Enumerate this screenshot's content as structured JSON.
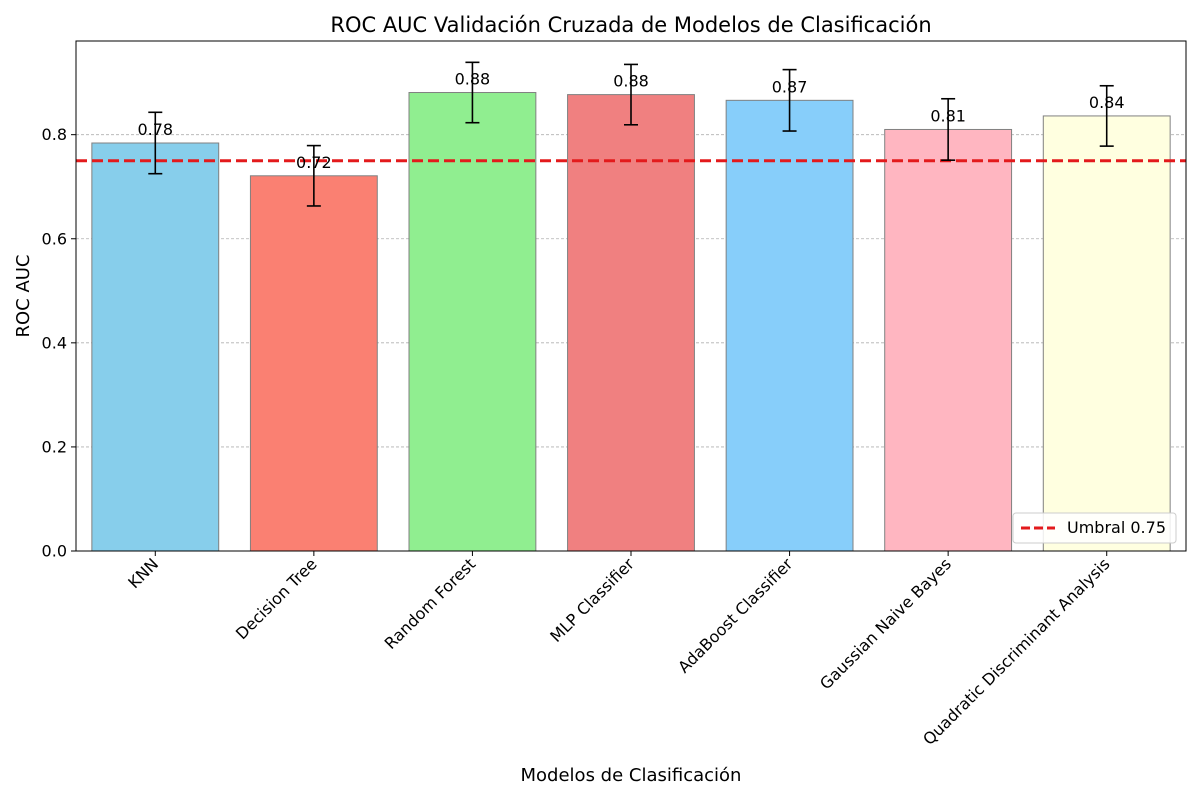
{
  "chart_data": {
    "type": "bar",
    "title": "ROC AUC Validación Cruzada de Modelos de Clasificación",
    "xlabel": "Modelos de Clasificación",
    "ylabel": "ROC AUC",
    "categories": [
      "KNN",
      "Decision Tree",
      "Random Forest",
      "MLP Classifier",
      "AdaBoost Classifier",
      "Gaussian Naive Bayes",
      "Quadratic Discriminant Analysis"
    ],
    "values": [
      0.784,
      0.721,
      0.881,
      0.877,
      0.866,
      0.81,
      0.836
    ],
    "errors": [
      0.059,
      0.058,
      0.058,
      0.058,
      0.059,
      0.059,
      0.058
    ],
    "data_labels": [
      "0.78",
      "0.72",
      "0.88",
      "0.88",
      "0.87",
      "0.81",
      "0.84"
    ],
    "bar_colors": [
      "#87ceeb",
      "#fa8072",
      "#90ee90",
      "#f08080",
      "#87cefa",
      "#ffb6c1",
      "#ffffe0"
    ],
    "bar_edge_color": "#808080",
    "ylim": [
      0,
      0.98
    ],
    "yticks": [
      0.0,
      0.2,
      0.4,
      0.6,
      0.8
    ],
    "ytick_labels": [
      "0.0",
      "0.2",
      "0.4",
      "0.6",
      "0.8"
    ],
    "grid": "horizontal dashed",
    "threshold": {
      "value": 0.75,
      "label": "Umbral 0.75",
      "color": "#e31a1c"
    },
    "legend": {
      "position": "bottom-right",
      "entries": [
        "Umbral 0.75"
      ]
    }
  }
}
